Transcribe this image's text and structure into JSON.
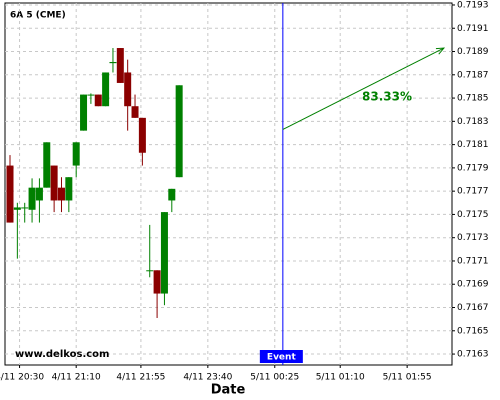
{
  "chart_data": {
    "type": "candlestick",
    "title": "6A 5 (CME)",
    "x_label": "Date",
    "watermark": "www.delkos.com",
    "x": [
      0,
      1,
      2,
      3,
      4,
      5,
      6,
      7,
      8,
      9,
      10,
      11,
      12,
      13,
      14,
      15,
      16,
      17,
      18,
      19,
      20,
      21,
      22,
      23
    ],
    "open": [
      0.71792,
      0.71754,
      0.71756,
      0.71754,
      0.71762,
      0.71773,
      0.71792,
      0.71773,
      0.71762,
      0.71792,
      0.71822,
      0.71853,
      0.71853,
      0.71843,
      0.7188,
      0.71893,
      0.71872,
      0.71843,
      0.71833,
      0.71702,
      0.71702,
      0.71682,
      0.71762,
      0.71782
    ],
    "high": [
      0.71801,
      0.7176,
      0.7176,
      0.71781,
      0.71781,
      0.71812,
      0.71792,
      0.71782,
      0.71782,
      0.71812,
      0.71853,
      0.71854,
      0.71853,
      0.71872,
      0.71893,
      0.71893,
      0.71883,
      0.71853,
      0.71833,
      0.71741,
      0.71702,
      0.71752,
      0.71772,
      0.71861
    ],
    "low": [
      0.71743,
      0.71712,
      0.71743,
      0.71743,
      0.71743,
      0.71773,
      0.71752,
      0.71752,
      0.71752,
      0.71782,
      0.71822,
      0.71845,
      0.71843,
      0.71843,
      0.71872,
      0.71863,
      0.71822,
      0.71833,
      0.71792,
      0.71696,
      0.71661,
      0.71672,
      0.71752,
      0.71782
    ],
    "close": [
      0.71743,
      0.71756,
      0.71756,
      0.71773,
      0.71773,
      0.71812,
      0.71762,
      0.71762,
      0.71782,
      0.71812,
      0.71853,
      0.71853,
      0.71843,
      0.71872,
      0.71881,
      0.71863,
      0.71843,
      0.71833,
      0.71803,
      0.71702,
      0.71682,
      0.71752,
      0.71772,
      0.71861
    ],
    "up_color": "#008000",
    "down_color": "#8b0000",
    "xlim": [
      -0.68,
      60.1
    ],
    "ylim": [
      0.716206,
      0.719317
    ],
    "xticks": [
      {
        "value": 1.3,
        "label": "4/11 20:30"
      },
      {
        "value": 9,
        "label": "4/11 21:10"
      },
      {
        "value": 17.8,
        "label": "4/11 21:55"
      },
      {
        "value": 26.9,
        "label": "4/11 23:40"
      },
      {
        "value": 36,
        "label": "5/11 00:25"
      },
      {
        "value": 44.9,
        "label": "5/11 01:10"
      },
      {
        "value": 54,
        "label": "5/11 01:55"
      }
    ],
    "yticks": [
      0.7163,
      0.7165,
      0.7167,
      0.7169,
      0.7171,
      0.7173,
      0.7175,
      0.7177,
      0.7179,
      0.7181,
      0.7183,
      0.7185,
      0.7187,
      0.7189,
      0.7191,
      0.7193
    ],
    "grid": true,
    "event": {
      "x": 37.1,
      "label": "Event",
      "color": "#0000ff"
    },
    "forecast": {
      "x": [
        37.1,
        59
      ],
      "y": [
        0.71823,
        0.71893
      ],
      "label": "83.33%",
      "color": "#008000"
    }
  }
}
